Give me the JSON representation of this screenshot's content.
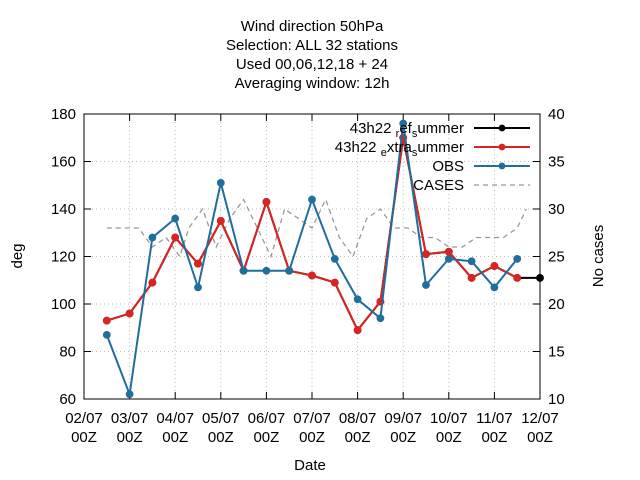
{
  "chart_data": {
    "type": "line",
    "title_lines": [
      "Wind direction 50hPa",
      "Selection: ALL     32 stations",
      "Used  00,06,12,18  + 24",
      "Averaging window: 12h"
    ],
    "xlabel": "Date",
    "ylabel": "deg",
    "y2label": "No cases",
    "ylim": [
      60,
      180
    ],
    "y2lim": [
      10,
      40
    ],
    "x_ticks": [
      {
        "l1": "02/07",
        "l2": "00Z"
      },
      {
        "l1": "03/07",
        "l2": "00Z"
      },
      {
        "l1": "04/07",
        "l2": "00Z"
      },
      {
        "l1": "05/07",
        "l2": "00Z"
      },
      {
        "l1": "06/07",
        "l2": "00Z"
      },
      {
        "l1": "07/07",
        "l2": "00Z"
      },
      {
        "l1": "08/07",
        "l2": "00Z"
      },
      {
        "l1": "09/07",
        "l2": "00Z"
      },
      {
        "l1": "10/07",
        "l2": "00Z"
      },
      {
        "l1": "11/07",
        "l2": "00Z"
      },
      {
        "l1": "12/07",
        "l2": "00Z"
      }
    ],
    "y_ticks": [
      "60",
      "80",
      "100",
      "120",
      "140",
      "160",
      "180"
    ],
    "y2_ticks": [
      "10",
      "15",
      "20",
      "25",
      "30",
      "35",
      "40"
    ],
    "grid": true,
    "legend_position": "top-right",
    "series": [
      {
        "name_parts": [
          [
            "43h22 ",
            "n"
          ],
          [
            "r",
            "sub"
          ],
          [
            "ef",
            "n"
          ],
          [
            "s",
            "sub"
          ],
          [
            "ummer",
            "n"
          ]
        ],
        "color": "#000000",
        "style": "line-points",
        "axis": "y",
        "x": [
          0.5,
          1.0,
          1.5,
          2.0,
          2.5,
          3.0,
          3.5,
          4.0,
          4.5,
          5.0,
          5.5,
          6.0,
          6.5,
          7.0,
          7.5,
          8.0,
          8.5,
          9.0,
          9.5,
          10.0
        ],
        "values": [
          93,
          96,
          109,
          128,
          117,
          135,
          114,
          143,
          114,
          112,
          109,
          89,
          101,
          170,
          121,
          122,
          111,
          116,
          111,
          111
        ]
      },
      {
        "name_parts": [
          [
            "43h22 ",
            "n"
          ],
          [
            "e",
            "sub"
          ],
          [
            "xtra",
            "n"
          ],
          [
            "s",
            "sub"
          ],
          [
            "ummer",
            "n"
          ]
        ],
        "color": "#dd2222",
        "style": "line-points",
        "axis": "y",
        "x": [
          0.5,
          1.0,
          1.5,
          2.0,
          2.5,
          3.0,
          3.5,
          4.0,
          4.5,
          5.0,
          5.5,
          6.0,
          6.5,
          7.0,
          7.5,
          8.0,
          8.5,
          9.0,
          9.5
        ],
        "values": [
          93,
          96,
          109,
          128,
          117,
          135,
          114,
          143,
          114,
          112,
          109,
          89,
          101,
          170,
          121,
          122,
          111,
          116,
          111
        ]
      },
      {
        "name": "OBS",
        "color": "#1f6e9e",
        "style": "line-points",
        "axis": "y",
        "x": [
          0.5,
          1.0,
          1.5,
          2.0,
          2.5,
          3.0,
          3.5,
          4.0,
          4.5,
          5.0,
          5.5,
          6.0,
          6.5,
          7.0,
          7.5,
          8.0,
          8.5,
          9.0,
          9.5
        ],
        "values": [
          87,
          62,
          128,
          136,
          107,
          151,
          114,
          114,
          114,
          144,
          119,
          102,
          94,
          176,
          108,
          119,
          118,
          107,
          119
        ]
      },
      {
        "name": "CASES",
        "color": "#999999",
        "style": "dashed",
        "axis": "y2",
        "x": [
          0.5,
          0.9,
          1.2,
          1.5,
          1.8,
          2.1,
          2.3,
          2.6,
          2.9,
          3.2,
          3.5,
          3.8,
          4.1,
          4.4,
          4.7,
          5.0,
          5.3,
          5.6,
          5.9,
          6.2,
          6.5,
          6.8,
          7.1,
          7.4,
          7.7,
          8.0,
          8.3,
          8.6,
          8.9,
          9.2,
          9.5,
          9.7
        ],
        "values": [
          28,
          28,
          28,
          26,
          27,
          25,
          28,
          30,
          26,
          29,
          31,
          28,
          25,
          30,
          29,
          28,
          31,
          27,
          25,
          29,
          30,
          28,
          28,
          27,
          27,
          26,
          26,
          27,
          27,
          27,
          28,
          30
        ]
      }
    ]
  }
}
